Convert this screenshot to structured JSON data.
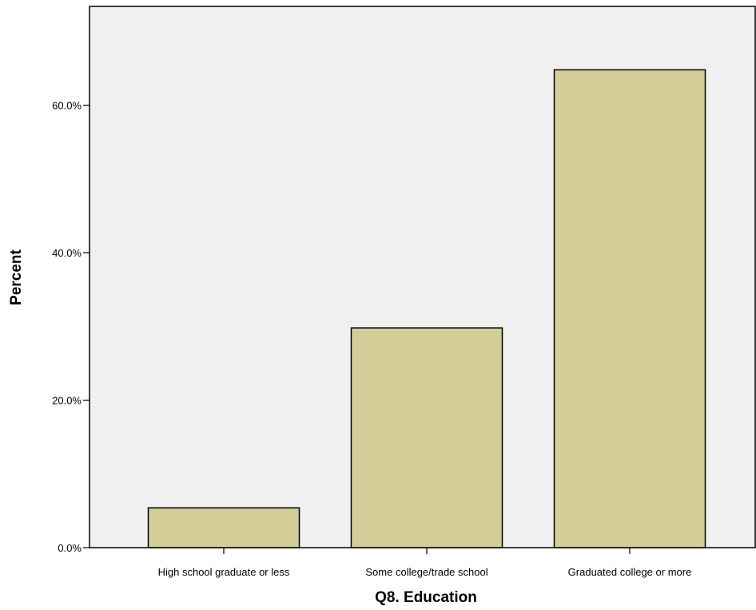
{
  "chart_data": {
    "type": "bar",
    "xlabel": "Q8. Education",
    "ylabel": "Percent",
    "categories": [
      "High school graduate or less",
      "Some college/trade school",
      "Graduated college or more"
    ],
    "values": [
      5.4,
      29.8,
      64.8
    ],
    "ylim": [
      0,
      73.4
    ],
    "y_ticks": [
      0,
      20,
      40,
      60
    ],
    "y_tick_labels": [
      "0.0%",
      "20.0%",
      "40.0%",
      "60.0%"
    ],
    "grid": false,
    "legend": "none",
    "colors": {
      "plot_background": "#f0f0f0",
      "bar_fill": "#d3ce98",
      "bar_stroke": "#000000"
    }
  }
}
